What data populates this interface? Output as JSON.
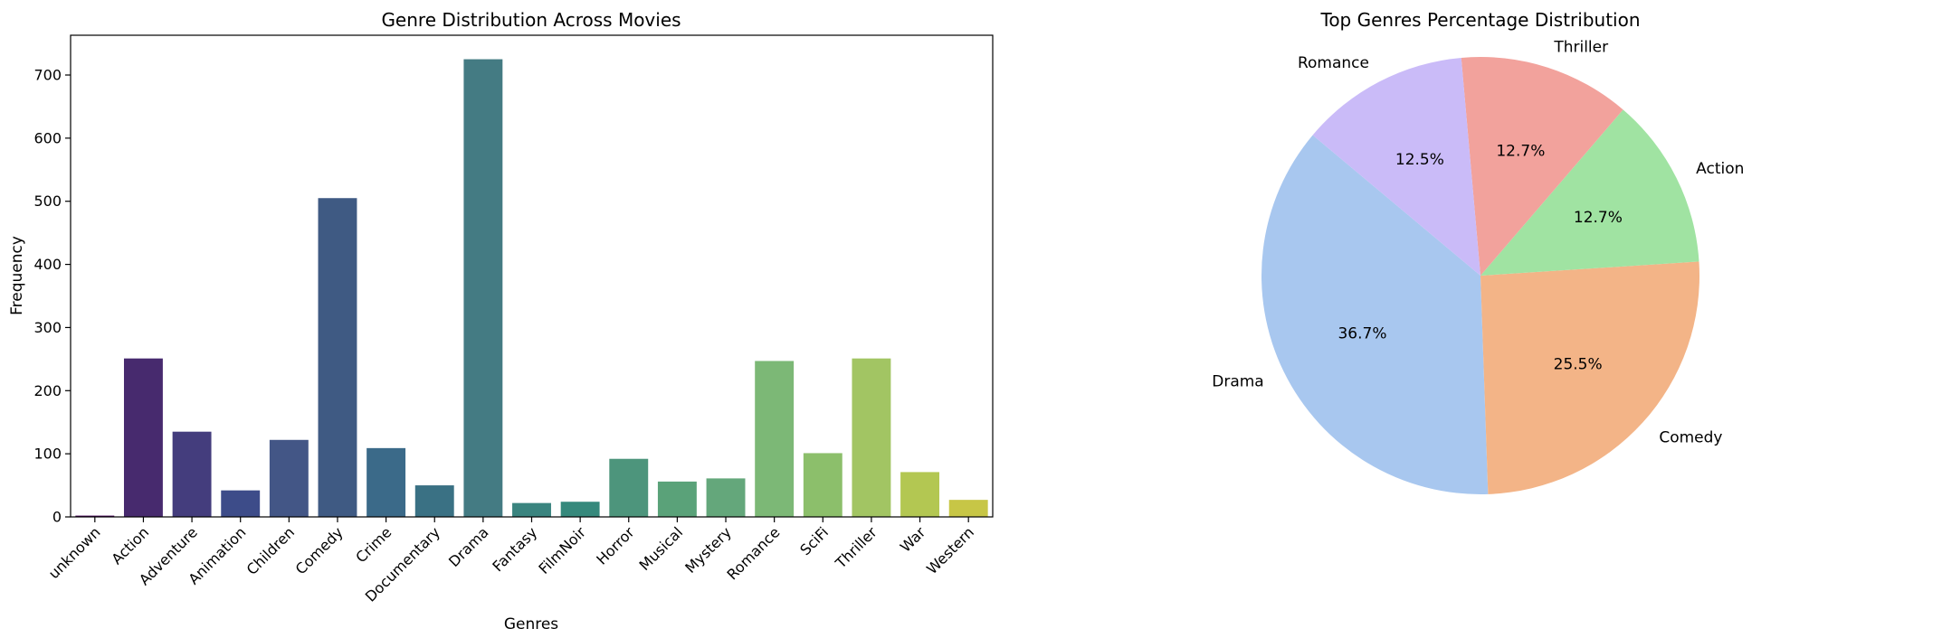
{
  "chart_data": [
    {
      "type": "bar",
      "title": "Genre Distribution Across Movies",
      "xlabel": "Genres",
      "ylabel": "Frequency",
      "categories": [
        "unknown",
        "Action",
        "Adventure",
        "Animation",
        "Children",
        "Comedy",
        "Crime",
        "Documentary",
        "Drama",
        "Fantasy",
        "FilmNoir",
        "Horror",
        "Musical",
        "Mystery",
        "Romance",
        "SciFi",
        "Thriller",
        "War",
        "Western"
      ],
      "values": [
        2,
        251,
        135,
        42,
        122,
        505,
        109,
        50,
        725,
        22,
        24,
        92,
        56,
        61,
        247,
        101,
        251,
        71,
        27
      ],
      "ylim": [
        0,
        763
      ],
      "yticks": [
        0,
        100,
        200,
        300,
        400,
        500,
        600,
        700
      ],
      "colors": [
        "#440154",
        "#472a6e",
        "#443d7d",
        "#3d4c89",
        "#435686",
        "#3f5a83",
        "#3b6a89",
        "#3a7184",
        "#447b83",
        "#3a847f",
        "#36897c",
        "#4d957c",
        "#5aa279",
        "#64a77b",
        "#7cb876",
        "#8cbf6b",
        "#a2c563",
        "#b3c752",
        "#c7c646"
      ],
      "grid": false
    },
    {
      "type": "pie",
      "title": "Top Genres Percentage Distribution",
      "labels": [
        "Drama",
        "Comedy",
        "Action",
        "Thriller",
        "Romance"
      ],
      "values": [
        36.7,
        25.5,
        12.7,
        12.7,
        12.5
      ],
      "pct_labels": [
        "36.7%",
        "25.5%",
        "12.7%",
        "12.7%",
        "12.5%"
      ],
      "colors": [
        "#a8c7ef",
        "#f3b487",
        "#a0e3a2",
        "#f2a29c",
        "#cabbf8"
      ],
      "start_angle_deg": 140
    }
  ]
}
